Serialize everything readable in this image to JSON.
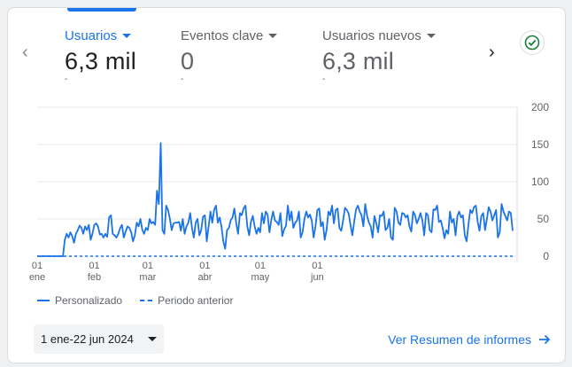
{
  "metrics": [
    {
      "label": "Usuarios",
      "value": "6,3 mil",
      "sub": "-",
      "active": true
    },
    {
      "label": "Eventos clave",
      "value": "0",
      "sub": "-",
      "active": false
    },
    {
      "label": "Usuarios nuevos",
      "value": "6,3 mil",
      "sub": "-",
      "active": false
    }
  ],
  "chart_data": {
    "type": "line",
    "ylim": [
      0,
      200
    ],
    "y_ticks": [
      "200",
      "150",
      "100",
      "50",
      "0"
    ],
    "x_ticks": [
      {
        "day": "01",
        "month": "ene",
        "index": 0
      },
      {
        "day": "01",
        "month": "feb",
        "index": 31
      },
      {
        "day": "01",
        "month": "mar",
        "index": 60
      },
      {
        "day": "01",
        "month": "abr",
        "index": 91
      },
      {
        "day": "01",
        "month": "may",
        "index": 121
      },
      {
        "day": "01",
        "month": "jun",
        "index": 152
      }
    ],
    "grid": true,
    "legend_position": "bottom-left",
    "series": [
      {
        "name": "Personalizado",
        "style": "solid",
        "color": "#1a73e8",
        "values": [
          0,
          0,
          0,
          0,
          0,
          0,
          0,
          0,
          0,
          0,
          0,
          0,
          0,
          0,
          0,
          22,
          30,
          25,
          32,
          27,
          18,
          30,
          35,
          41,
          38,
          30,
          40,
          35,
          42,
          22,
          30,
          42,
          44,
          40,
          29,
          30,
          25,
          30,
          26,
          52,
          55,
          30,
          28,
          25,
          30,
          38,
          42,
          25,
          33,
          40,
          38,
          32,
          20,
          28,
          45,
          40,
          50,
          36,
          30,
          38,
          35,
          50,
          44,
          46,
          42,
          88,
          70,
          152,
          35,
          30,
          68,
          62,
          50,
          35,
          44,
          45,
          45,
          46,
          34,
          50,
          30,
          40,
          45,
          58,
          38,
          25,
          45,
          50,
          28,
          35,
          53,
          55,
          20,
          40,
          60,
          45,
          62,
          68,
          45,
          52,
          40,
          20,
          10,
          35,
          38,
          48,
          52,
          64,
          44,
          30,
          58,
          55,
          64,
          68,
          40,
          28,
          46,
          54,
          40,
          30,
          38,
          32,
          58,
          44,
          60,
          56,
          32,
          48,
          60,
          48,
          46,
          42,
          58,
          27,
          36,
          41,
          68,
          48,
          60,
          38,
          45,
          48,
          60,
          25,
          32,
          50,
          60,
          52,
          56,
          48,
          25,
          40,
          62,
          64,
          40,
          46,
          22,
          35,
          60,
          55,
          68,
          44,
          62,
          64,
          38,
          34,
          48,
          65,
          62,
          57,
          42,
          28,
          46,
          63,
          68,
          60,
          55,
          40,
          70,
          54,
          45,
          40,
          25,
          54,
          44,
          32,
          55,
          54,
          60,
          35,
          38,
          50,
          25,
          22,
          65,
          60,
          45,
          42,
          58,
          57,
          52,
          55,
          40,
          33,
          60,
          55,
          44,
          50,
          58,
          48,
          28,
          58,
          55,
          35,
          32,
          63,
          62,
          68,
          46,
          48,
          38,
          24,
          35,
          30,
          60,
          45,
          50,
          28,
          54,
          60,
          52,
          55,
          28,
          20,
          42,
          62,
          58,
          66,
          68,
          46,
          34,
          54,
          58,
          35,
          50,
          66,
          60,
          48,
          55,
          62,
          25,
          32,
          70,
          60,
          54,
          48,
          60,
          58,
          34
        ]
      },
      {
        "name": "Periodo anterior",
        "style": "dashed",
        "color": "#1a73e8",
        "values": "0"
      }
    ]
  },
  "legend": [
    "Personalizado",
    "Periodo anterior"
  ],
  "date_range": "1 ene-22 jun 2024",
  "report_link": "Ver Resumen de informes",
  "icons": {
    "prev": "chevron-left-icon",
    "next": "chevron-right-icon",
    "status": "check-circle-icon",
    "link": "arrow-right-icon"
  }
}
